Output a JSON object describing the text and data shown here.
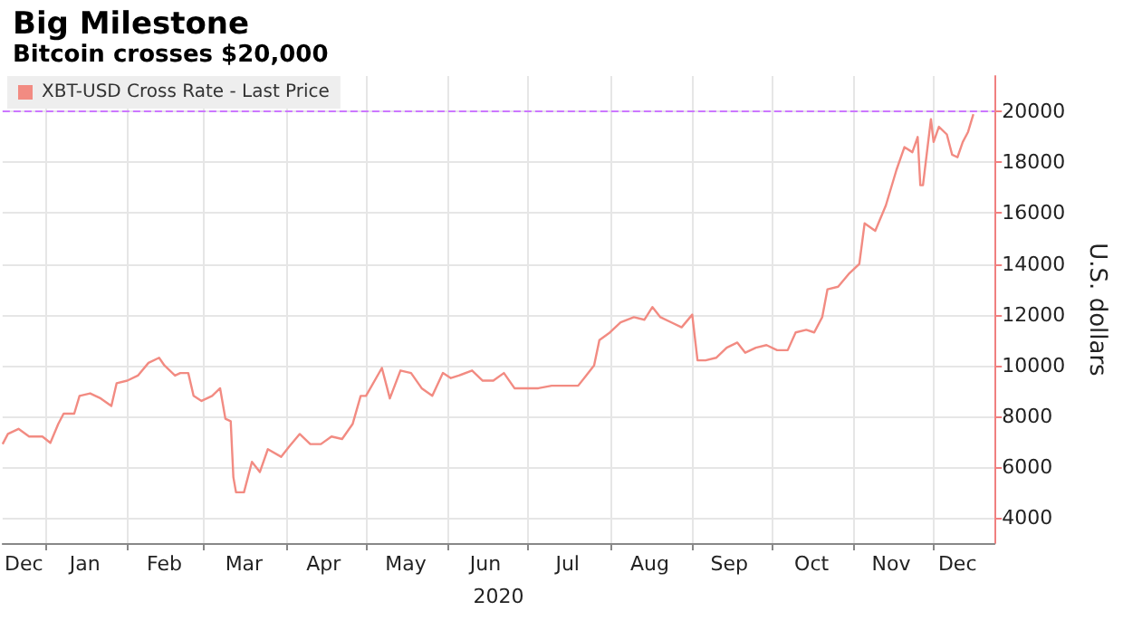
{
  "chart_data": {
    "type": "line",
    "title": "Big Milestone",
    "subtitle": "Bitcoin crosses $20,000",
    "ylabel": "U.S. dollars",
    "xlabel": "2020",
    "x": [
      "2019-12-16",
      "2019-12-18",
      "2019-12-22",
      "2019-12-26",
      "2019-12-31",
      "2020-01-03",
      "2020-01-06",
      "2020-01-08",
      "2020-01-12",
      "2020-01-14",
      "2020-01-18",
      "2020-01-22",
      "2020-01-26",
      "2020-01-28",
      "2020-02-01",
      "2020-02-05",
      "2020-02-09",
      "2020-02-13",
      "2020-02-15",
      "2020-02-19",
      "2020-02-21",
      "2020-02-24",
      "2020-02-26",
      "2020-02-29",
      "2020-03-04",
      "2020-03-07",
      "2020-03-09",
      "2020-03-11",
      "2020-03-12",
      "2020-03-13",
      "2020-03-16",
      "2020-03-19",
      "2020-03-22",
      "2020-03-25",
      "2020-03-30",
      "2020-04-02",
      "2020-04-06",
      "2020-04-10",
      "2020-04-14",
      "2020-04-18",
      "2020-04-22",
      "2020-04-26",
      "2020-04-29",
      "2020-05-01",
      "2020-05-07",
      "2020-05-10",
      "2020-05-14",
      "2020-05-18",
      "2020-05-22",
      "2020-05-26",
      "2020-05-30",
      "2020-06-02",
      "2020-06-05",
      "2020-06-10",
      "2020-06-14",
      "2020-06-18",
      "2020-06-22",
      "2020-06-26",
      "2020-06-30",
      "2020-07-05",
      "2020-07-10",
      "2020-07-15",
      "2020-07-20",
      "2020-07-23",
      "2020-07-26",
      "2020-07-28",
      "2020-08-01",
      "2020-08-05",
      "2020-08-10",
      "2020-08-14",
      "2020-08-17",
      "2020-08-20",
      "2020-08-24",
      "2020-08-28",
      "2020-09-01",
      "2020-09-03",
      "2020-09-06",
      "2020-09-10",
      "2020-09-14",
      "2020-09-18",
      "2020-09-21",
      "2020-09-25",
      "2020-09-29",
      "2020-10-03",
      "2020-10-07",
      "2020-10-10",
      "2020-10-14",
      "2020-10-17",
      "2020-10-20",
      "2020-10-22",
      "2020-10-26",
      "2020-10-30",
      "2020-11-03",
      "2020-11-05",
      "2020-11-09",
      "2020-11-13",
      "2020-11-17",
      "2020-11-20",
      "2020-11-23",
      "2020-11-25",
      "2020-11-26",
      "2020-11-27",
      "2020-11-30",
      "2020-12-01",
      "2020-12-03",
      "2020-12-06",
      "2020-12-08",
      "2020-12-10",
      "2020-12-12",
      "2020-12-14",
      "2020-12-16"
    ],
    "series": [
      {
        "name": "XBT-USD Cross Rate - Last Price",
        "color": "#f28b82",
        "values": [
          6900,
          7300,
          7500,
          7200,
          7200,
          6950,
          7700,
          8100,
          8100,
          8800,
          8900,
          8700,
          8400,
          9300,
          9400,
          9600,
          10100,
          10300,
          10000,
          9600,
          9700,
          9700,
          8800,
          8600,
          8800,
          9100,
          7900,
          7800,
          5600,
          5000,
          5000,
          6200,
          5800,
          6700,
          6400,
          6800,
          7300,
          6900,
          6900,
          7200,
          7100,
          7700,
          8800,
          8800,
          9900,
          8700,
          9800,
          9700,
          9100,
          8800,
          9700,
          9500,
          9600,
          9800,
          9400,
          9400,
          9700,
          9100,
          9100,
          9100,
          9200,
          9200,
          9200,
          9600,
          10000,
          11000,
          11300,
          11700,
          11900,
          11800,
          12300,
          11900,
          11700,
          11500,
          12000,
          10200,
          10200,
          10300,
          10700,
          10900,
          10500,
          10700,
          10800,
          10600,
          10600,
          11300,
          11400,
          11300,
          11900,
          13000,
          13100,
          13600,
          14000,
          15600,
          15300,
          16300,
          17700,
          18600,
          18400,
          19000,
          17100,
          17100,
          19700,
          18800,
          19400,
          19100,
          18300,
          18200,
          18800,
          19200,
          19900
        ]
      }
    ],
    "xlim": [
      "2019-12-16",
      "2020-12-24"
    ],
    "xticks": [
      {
        "value": "2019-12-24",
        "label": "Dec"
      },
      {
        "value": "2020-01-01",
        "label": null
      },
      {
        "value": "2020-01-16",
        "label": "Jan"
      },
      {
        "value": "2020-02-01",
        "label": null
      },
      {
        "value": "2020-02-15",
        "label": "Feb"
      },
      {
        "value": "2020-03-01",
        "label": null
      },
      {
        "value": "2020-03-16",
        "label": "Mar"
      },
      {
        "value": "2020-04-01",
        "label": null
      },
      {
        "value": "2020-04-15",
        "label": "Apr"
      },
      {
        "value": "2020-05-01",
        "label": null
      },
      {
        "value": "2020-05-16",
        "label": "May"
      },
      {
        "value": "2020-06-01",
        "label": null
      },
      {
        "value": "2020-06-15",
        "label": "Jun"
      },
      {
        "value": "2020-07-01",
        "label": null
      },
      {
        "value": "2020-07-16",
        "label": "Jul"
      },
      {
        "value": "2020-08-01",
        "label": null
      },
      {
        "value": "2020-08-16",
        "label": "Aug"
      },
      {
        "value": "2020-09-01",
        "label": null
      },
      {
        "value": "2020-09-15",
        "label": "Sep"
      },
      {
        "value": "2020-10-01",
        "label": null
      },
      {
        "value": "2020-10-16",
        "label": "Oct"
      },
      {
        "value": "2020-11-01",
        "label": null
      },
      {
        "value": "2020-11-15",
        "label": "Nov"
      },
      {
        "value": "2020-12-01",
        "label": null
      },
      {
        "value": "2020-12-10",
        "label": "Dec"
      }
    ],
    "ylim": [
      3000,
      21400
    ],
    "yticks": [
      4000,
      6000,
      8000,
      10000,
      12000,
      14000,
      16000,
      18000,
      20000
    ],
    "ref_lines": [
      {
        "axis": "y",
        "value": 20000,
        "color": "#cc77ff",
        "line_style": "dashed"
      }
    ],
    "grid": true,
    "legend": "top left",
    "marker": "none",
    "line_style": "solid"
  }
}
